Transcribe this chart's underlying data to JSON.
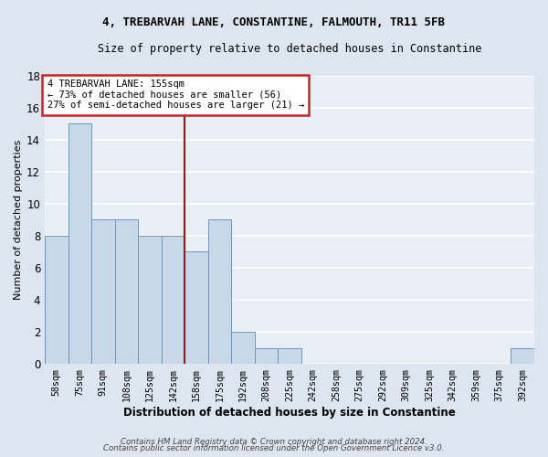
{
  "title_line1": "4, TREBARVAH LANE, CONSTANTINE, FALMOUTH, TR11 5FB",
  "title_line2": "Size of property relative to detached houses in Constantine",
  "xlabel": "Distribution of detached houses by size in Constantine",
  "ylabel": "Number of detached properties",
  "categories": [
    "58sqm",
    "75sqm",
    "91sqm",
    "108sqm",
    "125sqm",
    "142sqm",
    "158sqm",
    "175sqm",
    "192sqm",
    "208sqm",
    "225sqm",
    "242sqm",
    "258sqm",
    "275sqm",
    "292sqm",
    "309sqm",
    "325sqm",
    "342sqm",
    "359sqm",
    "375sqm",
    "392sqm"
  ],
  "values": [
    8,
    15,
    9,
    9,
    8,
    8,
    7,
    9,
    2,
    1,
    1,
    0,
    0,
    0,
    0,
    0,
    0,
    0,
    0,
    0,
    1
  ],
  "bar_color": "#c8d8e8",
  "bar_edge_color": "#6699bb",
  "vline_index": 6,
  "property_line_label": "4 TREBARVAH LANE: 155sqm",
  "annotation_line1": "← 73% of detached houses are smaller (56)",
  "annotation_line2": "27% of semi-detached houses are larger (21) →",
  "annotation_box_facecolor": "#ffffff",
  "annotation_box_edgecolor": "#cc2222",
  "vline_color": "#aa1111",
  "ylim": [
    0,
    18
  ],
  "yticks": [
    0,
    2,
    4,
    6,
    8,
    10,
    12,
    14,
    16,
    18
  ],
  "background_color": "#e8eef6",
  "grid_color": "#ffffff",
  "footer_line1": "Contains HM Land Registry data © Crown copyright and database right 2024.",
  "footer_line2": "Contains public sector information licensed under the Open Government Licence v3.0."
}
